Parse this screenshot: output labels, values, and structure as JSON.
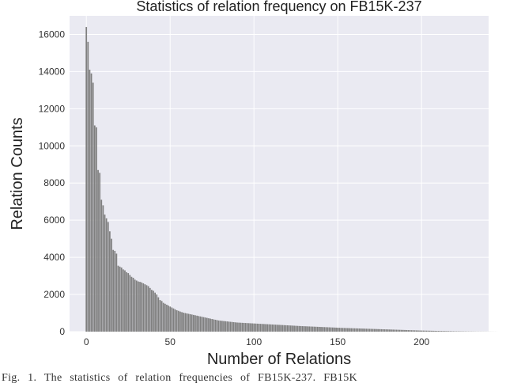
{
  "chart_data": {
    "type": "bar",
    "title": "Statistics of relation frequency on FB15K-237",
    "xlabel": "Number of Relations",
    "ylabel": "Relation Counts",
    "xlim": [
      -10,
      240
    ],
    "ylim": [
      0,
      17000
    ],
    "xticks": [
      0,
      50,
      100,
      150,
      200
    ],
    "yticks": [
      0,
      2000,
      4000,
      6000,
      8000,
      10000,
      12000,
      14000,
      16000
    ],
    "grid": true,
    "colors": {
      "background": "#eaeaf2",
      "bar": "#7f7f7f",
      "grid": "#ffffff"
    },
    "series": [
      {
        "values": [
          16400,
          15600,
          14100,
          13900,
          13400,
          11100,
          11000,
          8700,
          8550,
          7100,
          6800,
          6300,
          6100,
          5900,
          5400,
          5000,
          4400,
          4350,
          4200,
          3550,
          3500,
          3450,
          3350,
          3300,
          3200,
          3150,
          3050,
          2950,
          2900,
          2800,
          2750,
          2700,
          2680,
          2650,
          2600,
          2550,
          2500,
          2450,
          2350,
          2250,
          2200,
          2100,
          2000,
          1850,
          1700,
          1650,
          1550,
          1500,
          1450,
          1400,
          1350,
          1300,
          1250,
          1200,
          1150,
          1120,
          1080,
          1050,
          1020,
          1000,
          980,
          960,
          940,
          920,
          900,
          880,
          860,
          840,
          820,
          800,
          780,
          760,
          740,
          720,
          700,
          680,
          660,
          640,
          620,
          600,
          590,
          580,
          570,
          560,
          550,
          540,
          530,
          520,
          510,
          500,
          490,
          485,
          480,
          475,
          470,
          465,
          460,
          455,
          450,
          445,
          440,
          435,
          430,
          425,
          420,
          415,
          410,
          405,
          400,
          395,
          390,
          385,
          380,
          375,
          370,
          365,
          360,
          355,
          350,
          345,
          340,
          335,
          330,
          325,
          320,
          315,
          310,
          305,
          300,
          296,
          292,
          288,
          284,
          280,
          276,
          272,
          268,
          264,
          260,
          256,
          252,
          248,
          244,
          240,
          236,
          232,
          228,
          224,
          220,
          216,
          212,
          208,
          204,
          200,
          197,
          194,
          191,
          188,
          185,
          182,
          179,
          176,
          173,
          170,
          167,
          164,
          161,
          158,
          155,
          152,
          149,
          146,
          143,
          140,
          137,
          134,
          131,
          128,
          125,
          122,
          119,
          116,
          113,
          110,
          107,
          104,
          101,
          98,
          95,
          92,
          89,
          86,
          83,
          80,
          77,
          74,
          71,
          68,
          65,
          62,
          60,
          58,
          56,
          54,
          52,
          50,
          48,
          46,
          44,
          42,
          40,
          38,
          36,
          34,
          32,
          30,
          28,
          26,
          24,
          22,
          20,
          19,
          18,
          17,
          16,
          15,
          14,
          13,
          12,
          11,
          10,
          9,
          8,
          7,
          7,
          6,
          6,
          5,
          5,
          4,
          4,
          3,
          3,
          2,
          2,
          1
        ]
      }
    ]
  },
  "caption": "Fig. 1.   The statistics of relation frequencies of FB15K-237. FB15K"
}
